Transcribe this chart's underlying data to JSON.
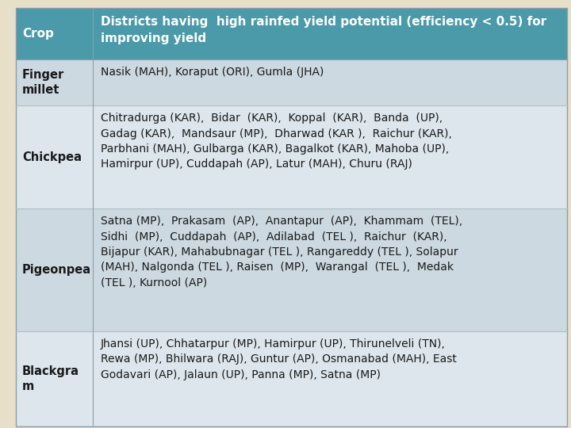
{
  "header_bg": "#4a9aaa",
  "header_text_color": "#ffffff",
  "row_bg_1": "#ccd9e0",
  "row_bg_2": "#dce6ec",
  "row_bg_3": "#ccd9e0",
  "row_bg_4": "#dce6ec",
  "cell_text_color": "#1a1a1a",
  "outer_bg": "#e8dfc8",
  "col1_header": "Crop",
  "col2_header": "Districts having  high rainfed yield potential (efficiency < 0.5) for\nimproving yield",
  "rows": [
    {
      "crop": "Finger\nmillet",
      "districts": "Nasik (MAH), Koraput (ORI), Gumla (JHA)"
    },
    {
      "crop": "Chickpea",
      "districts": "Chitradurga (KAR),  Bidar  (KAR),  Koppal  (KAR),  Banda  (UP),\nGadag (KAR),  Mandsaur (MP),  Dharwad (KAR ),  Raichur (KAR),\nParbhani (MAH), Gulbarga (KAR), Bagalkot (KAR), Mahoba (UP),\nHamirpur (UP), Cuddapah (AP), Latur (MAH), Churu (RAJ)"
    },
    {
      "crop": "Pigeonpea",
      "districts": "Satna (MP),  Prakasam  (AP),  Anantapur  (AP),  Khammam  (TEL),\nSidhi  (MP),  Cuddapah  (AP),  Adilabad  (TEL ),  Raichur  (KAR),\nBijapur (KAR), Mahabubnagar (TEL ), Rangareddy (TEL ), Solapur\n(MAH), Nalgonda (TEL ), Raisen  (MP),  Warangal  (TEL ),  Medak\n(TEL ), Kurnool (AP)"
    },
    {
      "crop": "Blackgra\nm",
      "districts": "Jhansi (UP), Chhatarpur (MP), Hamirpur (UP), Thirunelveli (TN),\nRewa (MP), Bhilwara (RAJ), Guntur (AP), Osmanabad (MAH), East\nGodavari (AP), Jalaun (UP), Panna (MP), Satna (MP)"
    }
  ],
  "figsize": [
    7.2,
    5.4
  ],
  "dpi": 100
}
